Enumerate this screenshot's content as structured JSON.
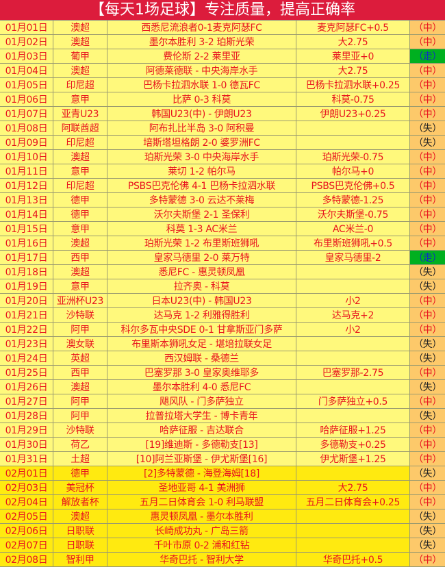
{
  "title": "【每天1场足球】专注质量，提高正确率",
  "colors": {
    "header": "#dc1c3c",
    "row": "#fff97c",
    "row_feb": "#ffea10",
    "result_bg": "#fdc96a",
    "push_bg": "#00b020",
    "text": "#e8141e"
  },
  "rows": [
    [
      "01月01日",
      "澳超",
      "西悉尼流浪者0-1麦克阿瑟FC",
      "麦克阿瑟FC+0.5",
      "（中）"
    ],
    [
      "01月02日",
      "澳超",
      "墨尔本胜利 3-2 珀斯光荣",
      "大2.75",
      "（中）"
    ],
    [
      "01月03日",
      "葡甲",
      "费伦斯 2-2 莱里亚",
      "莱里亚+0",
      "（走）"
    ],
    [
      "01月04日",
      "澳超",
      "阿德莱德联 - 中央海岸水手",
      "大2.75",
      "（中）"
    ],
    [
      "01月05日",
      "印尼超",
      "巴杨卡拉泗水联 1-0 德瓦FC",
      "巴杨卡拉泗水联+0.25",
      "（中）"
    ],
    [
      "01月06日",
      "意甲",
      "比萨 0-3 科莫",
      "科莫-0.75",
      "（中）"
    ],
    [
      "01月07日",
      "亚青U23",
      "韩国U23(中) - 伊朗U23",
      "伊朗U23+0.25",
      "（中）"
    ],
    [
      "01月08日",
      "阿联酋超",
      "阿布扎比半岛 3-0 阿积曼",
      "",
      "（失）"
    ],
    [
      "01月09日",
      "印尼超",
      "培斯塔坦格朗 2-0 婆罗洲FC",
      "",
      "（失）"
    ],
    [
      "01月10日",
      "澳超",
      "珀斯光荣 3-0 中央海岸水手",
      "珀斯光荣-0.75",
      "（中）"
    ],
    [
      "01月11日",
      "意甲",
      "莱切 1-2 帕尔马",
      "帕尔马+0",
      "（中）"
    ],
    [
      "01月12日",
      "印尼超",
      "PSBS巴克伦佛 4-1 巴杨卡拉泗水联",
      "PSBS巴克伦佛+0.5",
      "（中）"
    ],
    [
      "01月13日",
      "德甲",
      "多特蒙德 3-0 云达不莱梅",
      "多特蒙德-1.25",
      "（中）"
    ],
    [
      "01月14日",
      "德甲",
      "沃尔夫斯堡 2-1 圣保利",
      "沃尔夫斯堡-0.75",
      "（中）"
    ],
    [
      "01月15日",
      "意甲",
      "科莫 1-3 AC米兰",
      "AC米兰-0",
      "（中）"
    ],
    [
      "01月16日",
      "澳超",
      "珀斯光荣 1-2 布里斯班狮吼",
      "布里斯班狮吼+0.5",
      "（中）"
    ],
    [
      "01月17日",
      "西甲",
      "皇家马德里 2-0 莱万特",
      "皇家马德里-2",
      "（走）"
    ],
    [
      "01月18日",
      "澳超",
      "悉尼FC - 惠灵顿凤凰",
      "",
      "（失）"
    ],
    [
      "01月19日",
      "意甲",
      "拉齐奥 - 科莫",
      "",
      "（失）"
    ],
    [
      "01月20日",
      "亚洲杯U23",
      "日本U23(中) - 韩国U23",
      "小2",
      "（中）"
    ],
    [
      "01月21日",
      "沙特联",
      "达马克 1-2 利雅得胜利",
      "达马克+2",
      "（中）"
    ],
    [
      "01月22日",
      "阿甲",
      "科尔多瓦中央SDE 0-1 甘拿斯亚门多萨",
      "小2",
      "（中）"
    ],
    [
      "01月23日",
      "澳女联",
      "布里斯本狮吼女足 - 堪培拉联女足",
      "",
      "（失）"
    ],
    [
      "01月24日",
      "英超",
      "西汉姆联 - 桑德兰",
      "",
      "（失）"
    ],
    [
      "01月25日",
      "西甲",
      "巴塞罗那 3-0 皇家奥维耶多",
      "巴塞罗那-2.75",
      "（中）"
    ],
    [
      "01月26日",
      "澳超",
      "墨尔本胜利 4-0 悉尼FC",
      "",
      "（失）"
    ],
    [
      "01月27日",
      "阿甲",
      "飓风队 - 门多萨独立",
      "门多萨独立+0.5",
      "（中）"
    ],
    [
      "01月28日",
      "阿甲",
      "拉普拉塔大学生 - 博卡青年",
      "",
      "（失）"
    ],
    [
      "01月29日",
      "沙特联",
      "哈萨征服 - 吉达联合",
      "哈萨征服+1.25",
      "（中）"
    ],
    [
      "01月30日",
      "荷乙",
      "[19]维迪斯 - 多德勒支[13]",
      "多德勒支+0.25",
      "（中）"
    ],
    [
      "01月31日",
      "土超",
      "[10]阿兰亚斯堡 - 伊尤斯堡[16]",
      "伊尤斯堡+1.25",
      "（中）"
    ],
    [
      "02月01日",
      "德甲",
      "[2]多特蒙德 - 海登海姆[18]",
      "",
      "（失）"
    ],
    [
      "02月03日",
      "美冠杯",
      "圣地亚哥 4-1 美洲狮",
      "大2.75",
      "（中）"
    ],
    [
      "02月04日",
      "解放者杯",
      "五月二日体育会 1-0 利马联盟",
      "五月二日体育会+0.25",
      "（中）"
    ],
    [
      "02月05日",
      "澳超",
      "惠灵顿凤凰 - 墨尔本胜利",
      "",
      "（失）"
    ],
    [
      "02月06日",
      "日职联",
      "长崎成功丸 - 广岛三箭",
      "",
      "（失）"
    ],
    [
      "02月07日",
      "日职联",
      "千叶市原 0-2 浦和红钻",
      "",
      "（失）"
    ],
    [
      "02月08日",
      "智利甲",
      "华奇巴托 - 智利大学",
      "华奇巴托+0.5",
      "（中）"
    ]
  ]
}
